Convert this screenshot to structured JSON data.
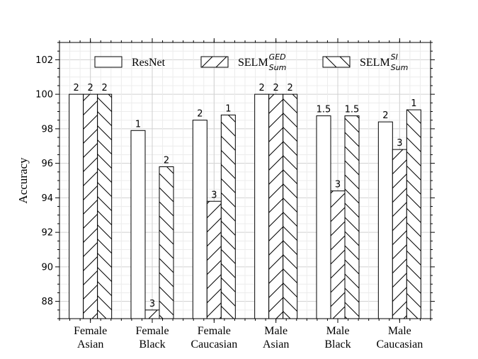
{
  "chart_data": {
    "type": "bar",
    "categories": [
      [
        "Female",
        "Asian"
      ],
      [
        "Female",
        "Black"
      ],
      [
        "Female",
        "Caucasian"
      ],
      [
        "Male",
        "Asian"
      ],
      [
        "Male",
        "Black"
      ],
      [
        "Male",
        "Caucasian"
      ]
    ],
    "series": [
      {
        "name": "ResNet",
        "legend_main": "ResNet",
        "legend_sub": "",
        "legend_sup": "",
        "hatch": "none",
        "values": [
          100,
          97.9,
          98.5,
          100,
          98.75,
          98.4
        ],
        "labels": [
          "2",
          "1",
          "2",
          "2",
          "1.5",
          "2"
        ]
      },
      {
        "name": "SELM_Sum^GED",
        "legend_main": "SELM",
        "legend_sub": "Sum",
        "legend_sup": "GED",
        "hatch": "forward",
        "values": [
          100,
          87.5,
          93.8,
          100,
          94.4,
          96.8
        ],
        "labels": [
          "2",
          "3",
          "3",
          "2",
          "3",
          "3"
        ]
      },
      {
        "name": "SELM_Sum^SI",
        "legend_main": "SELM",
        "legend_sub": "Sum",
        "legend_sup": "SI",
        "hatch": "back",
        "values": [
          100,
          95.8,
          98.8,
          100,
          98.75,
          99.1
        ],
        "labels": [
          "2",
          "2",
          "1",
          "2",
          "1.5",
          "1"
        ]
      }
    ],
    "ylabel": "Accuracy",
    "ylim": [
      87,
      103
    ],
    "yticks": [
      "88",
      "90",
      "92",
      "94",
      "96",
      "98",
      "100",
      "102"
    ],
    "grid": true,
    "legend_position": "top"
  }
}
